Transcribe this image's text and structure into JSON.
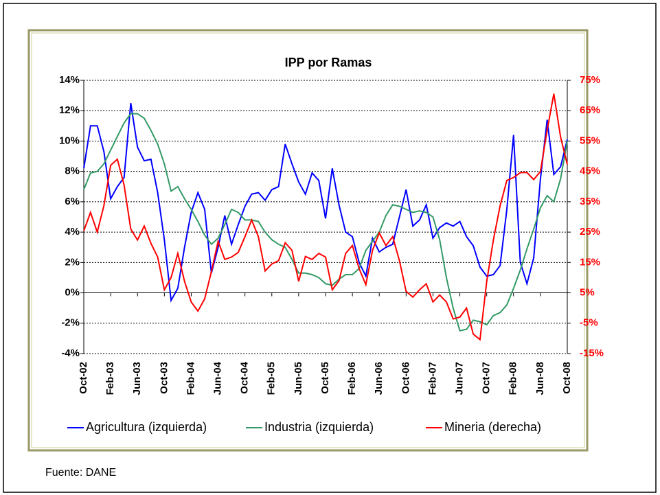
{
  "chart_data": {
    "type": "line",
    "title": "IPP por Ramas",
    "source": "Fuente: DANE",
    "categories": [
      "Oct-02",
      null,
      null,
      null,
      "Feb-03",
      null,
      null,
      null,
      "Jun-03",
      null,
      null,
      null,
      "Oct-03",
      null,
      null,
      null,
      "Feb-04",
      null,
      null,
      null,
      "Jun-04",
      null,
      null,
      null,
      "Oct-04",
      null,
      null,
      null,
      "Feb-05",
      null,
      null,
      null,
      "Jun-05",
      null,
      null,
      null,
      "Oct-05",
      null,
      null,
      null,
      "Feb-06",
      null,
      null,
      null,
      "Jun-06",
      null,
      null,
      null,
      "Oct-06",
      null,
      null,
      null,
      "Feb-07",
      null,
      null,
      null,
      "Jun-07",
      null,
      null,
      null,
      "Oct-07",
      null,
      null,
      null,
      "Feb-08",
      null,
      null,
      null,
      "Jun-08",
      null,
      null,
      null,
      "Oct-08"
    ],
    "series": [
      {
        "name": "Agricultura (izquierda)",
        "color": "#0000ff",
        "values": [
          8.2,
          11.0,
          11.0,
          9.3,
          6.2,
          7.0,
          7.6,
          12.5,
          9.6,
          8.7,
          8.8,
          6.6,
          3.5,
          -0.5,
          0.3,
          3.0,
          5.3,
          6.6,
          5.5,
          1.3,
          3.0,
          5.1,
          3.2,
          4.5,
          5.7,
          6.5,
          6.6,
          6.1,
          6.8,
          7.0,
          9.8,
          8.5,
          7.3,
          6.5,
          7.9,
          7.4,
          4.9,
          8.2,
          5.8,
          4.0,
          3.7,
          2.0,
          1.1,
          3.6,
          2.7,
          3.0,
          3.2,
          5.0,
          6.8,
          4.4,
          4.8,
          5.8,
          3.6,
          4.3,
          4.6,
          4.4,
          4.7,
          3.7,
          3.1,
          1.7,
          1.1,
          1.2,
          1.8,
          5.5,
          10.4,
          2.0,
          0.6,
          2.3,
          7.5,
          11.4,
          7.8,
          8.3,
          10.1
        ]
      },
      {
        "name": "Industria (izquierda)",
        "color": "#339966",
        "values": [
          6.8,
          7.9,
          8.0,
          8.5,
          9.4,
          10.3,
          11.2,
          11.8,
          11.8,
          11.5,
          10.7,
          9.8,
          8.5,
          6.7,
          7.0,
          6.2,
          5.5,
          4.7,
          3.8,
          3.2,
          3.6,
          4.5,
          5.5,
          5.3,
          4.8,
          4.8,
          4.7,
          4.0,
          3.5,
          3.2,
          3.0,
          2.2,
          1.3,
          1.3,
          1.2,
          1.0,
          0.6,
          0.5,
          0.9,
          1.2,
          1.2,
          1.6,
          2.8,
          3.4,
          4.0,
          5.1,
          5.8,
          5.7,
          5.5,
          5.3,
          5.4,
          5.3,
          5.0,
          3.5,
          1.0,
          -1.0,
          -2.5,
          -2.4,
          -1.8,
          -1.9,
          -2.1,
          -1.5,
          -1.3,
          -0.8,
          0.3,
          1.5,
          2.9,
          4.2,
          5.6,
          6.4,
          6.0,
          7.5,
          10.0
        ]
      },
      {
        "name": "Mineria (derecha)",
        "color": "#ff0000",
        "axis": "y2",
        "values": [
          25.4,
          31.5,
          25.0,
          33.7,
          47.0,
          49.0,
          40.5,
          26.0,
          22.4,
          27.0,
          21.3,
          16.8,
          6.0,
          10.0,
          18.0,
          8.8,
          2.0,
          -1.0,
          3.0,
          12.0,
          22.0,
          16.0,
          16.8,
          18.3,
          23.5,
          29.0,
          23.5,
          12.2,
          14.5,
          15.6,
          21.5,
          19.0,
          8.8,
          17.0,
          16.0,
          18.0,
          16.8,
          6.0,
          9.0,
          18.0,
          20.6,
          13.0,
          7.7,
          19.0,
          24.7,
          20.6,
          23.5,
          15.6,
          5.5,
          3.6,
          6.0,
          8.0,
          2.0,
          4.3,
          2.0,
          -3.6,
          -3.0,
          0.0,
          -8.6,
          -10.4,
          8.8,
          22.4,
          33.7,
          42.0,
          43.0,
          44.6,
          44.6,
          42.3,
          45.0,
          58.6,
          70.6,
          56.4,
          47.3
        ]
      }
    ],
    "ylim": [
      -4,
      14
    ],
    "yticks": [
      {
        "value": -4,
        "label": "-4%"
      },
      {
        "value": -2,
        "label": "-2%"
      },
      {
        "value": 0,
        "label": "0%"
      },
      {
        "value": 2,
        "label": "2%"
      },
      {
        "value": 4,
        "label": "4%"
      },
      {
        "value": 6,
        "label": "6%"
      },
      {
        "value": 8,
        "label": "8%"
      },
      {
        "value": 10,
        "label": "10%"
      },
      {
        "value": 12,
        "label": "12%"
      },
      {
        "value": 14,
        "label": "14%"
      }
    ],
    "y2lim": [
      -15,
      75
    ],
    "y2ticks": [
      {
        "value": -15,
        "label": "-15%"
      },
      {
        "value": -5,
        "label": "-5%"
      },
      {
        "value": 5,
        "label": "5%"
      },
      {
        "value": 15,
        "label": "15%"
      },
      {
        "value": 25,
        "label": "25%"
      },
      {
        "value": 35,
        "label": "35%"
      },
      {
        "value": 45,
        "label": "45%"
      },
      {
        "value": 55,
        "label": "55%"
      },
      {
        "value": 65,
        "label": "65%"
      },
      {
        "value": 75,
        "label": "75%"
      }
    ],
    "y2color": "#ff0000",
    "grid": true,
    "legend": "bottom"
  }
}
